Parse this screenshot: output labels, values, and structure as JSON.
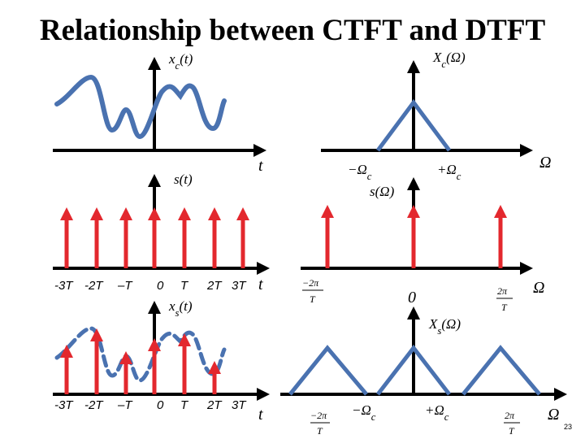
{
  "slide": {
    "title": "Relationship between CTFT and DTFT",
    "page_number": "23"
  },
  "colors": {
    "signal_blue": "#4a72b0",
    "impulse_red": "#e3282e",
    "axis": "#000000"
  },
  "top_left": {
    "y_label": "x_c(t)",
    "x_label": "t"
  },
  "top_right": {
    "y_label": "X_c(Ω)",
    "x_label": "Ω",
    "tick_neg": "−Ω_c",
    "tick_pos": "+Ω_c"
  },
  "mid_left": {
    "y_label": "s(t)",
    "x_label": "t",
    "ticks": [
      "-3T",
      "-2T",
      "–T",
      "0",
      "T",
      "2T",
      "3T"
    ]
  },
  "mid_right": {
    "y_label": "s(Ω)",
    "x_label": "Ω",
    "tick_zero": "0",
    "tick_neg_num": "−2π",
    "tick_neg_den": "T",
    "tick_pos_num": "2π",
    "tick_pos_den": "T"
  },
  "bottom_left": {
    "y_label": "x_s(t)",
    "x_label": "t",
    "ticks": [
      "-3T",
      "-2T",
      "–T",
      "0",
      "T",
      "2T",
      "3T"
    ]
  },
  "bottom_right": {
    "y_label": "X_s(Ω)",
    "x_label": "Ω",
    "tick_neg": "−Ω_c",
    "tick_pos": "+Ω_c",
    "tick_neg_num": "−2π",
    "tick_neg_den": "T",
    "tick_pos_num": "2π",
    "tick_pos_den": "T"
  }
}
